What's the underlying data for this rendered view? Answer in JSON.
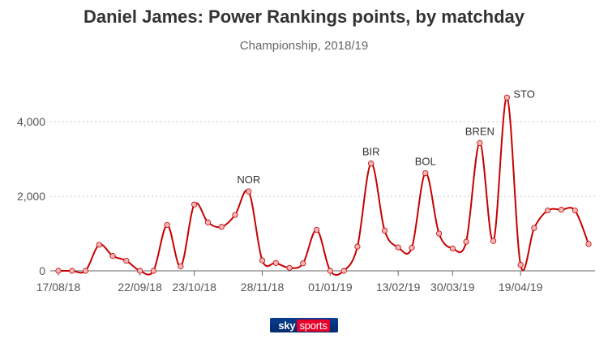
{
  "chart_data": {
    "type": "line",
    "title": "Daniel James: Power Rankings points, by matchday",
    "subtitle": "Championship, 2018/19",
    "xlabel": "",
    "ylabel": "",
    "ylim": [
      0,
      4700
    ],
    "yticks": [
      0,
      2000,
      4000
    ],
    "ytick_labels": [
      "0",
      "2,000",
      "4,000"
    ],
    "xtick_labels": [
      {
        "index": 0,
        "label": "17/08/18"
      },
      {
        "index": 6,
        "label": "22/09/18"
      },
      {
        "index": 10,
        "label": "23/10/18"
      },
      {
        "index": 15,
        "label": "28/11/18"
      },
      {
        "index": 20,
        "label": "01/01/19"
      },
      {
        "index": 25,
        "label": "13/02/19"
      },
      {
        "index": 29,
        "label": "30/03/19"
      },
      {
        "index": 34,
        "label": "19/04/19"
      }
    ],
    "values": [
      0,
      0,
      0,
      700,
      400,
      270,
      0,
      0,
      1230,
      120,
      1780,
      1300,
      1180,
      1500,
      2130,
      280,
      210,
      80,
      200,
      1100,
      0,
      0,
      650,
      2880,
      1080,
      630,
      620,
      2620,
      1000,
      600,
      780,
      3430,
      800,
      4650,
      160,
      1150,
      1620,
      1640,
      1620,
      720
    ],
    "annotations": [
      {
        "index": 14,
        "label": "NOR"
      },
      {
        "index": 23,
        "label": "BIR"
      },
      {
        "index": 27,
        "label": "BOL"
      },
      {
        "index": 31,
        "label": "BREN"
      },
      {
        "index": 33,
        "label": "STO"
      }
    ],
    "grid": true,
    "colors": {
      "line": "#c60000",
      "marker": "#f2b8b8",
      "grid": "#cccccc",
      "axis": "#666666"
    }
  },
  "branding": {
    "sky": "sky",
    "sports": "sports"
  }
}
